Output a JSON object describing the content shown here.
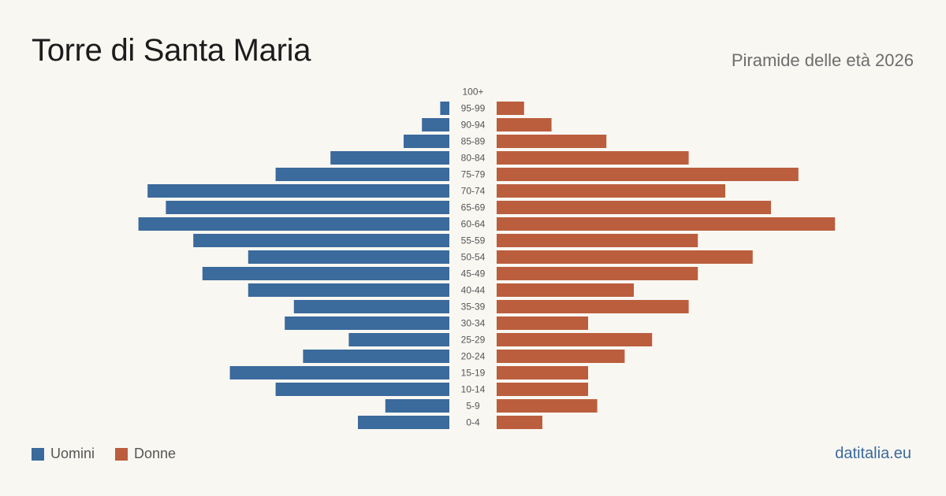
{
  "title": "Torre di Santa Maria",
  "subtitle": "Piramide delle età 2026",
  "source": "datitalia.eu",
  "colors": {
    "male": "#3b6a9c",
    "female": "#bb5e3d",
    "background": "#f9f7f2",
    "age_label": "#555555"
  },
  "chart_data": {
    "type": "bar",
    "orientation": "horizontal",
    "subtype": "population-pyramid",
    "categories": [
      "100+",
      "95-99",
      "90-94",
      "85-89",
      "80-84",
      "75-79",
      "70-74",
      "65-69",
      "60-64",
      "55-59",
      "50-54",
      "45-49",
      "40-44",
      "35-39",
      "30-34",
      "25-29",
      "20-24",
      "15-19",
      "10-14",
      "5-9",
      "0-4"
    ],
    "series": [
      {
        "name": "Uomini",
        "color": "#3b6a9c",
        "values": [
          0,
          1,
          3,
          5,
          13,
          19,
          33,
          31,
          34,
          28,
          22,
          27,
          22,
          17,
          18,
          11,
          16,
          24,
          19,
          7,
          10
        ]
      },
      {
        "name": "Donne",
        "color": "#bb5e3d",
        "values": [
          0,
          3,
          6,
          12,
          21,
          33,
          25,
          30,
          37,
          22,
          28,
          22,
          15,
          21,
          10,
          17,
          14,
          10,
          10,
          11,
          5
        ]
      }
    ],
    "legend_position": "bottom-left",
    "grid": false
  }
}
